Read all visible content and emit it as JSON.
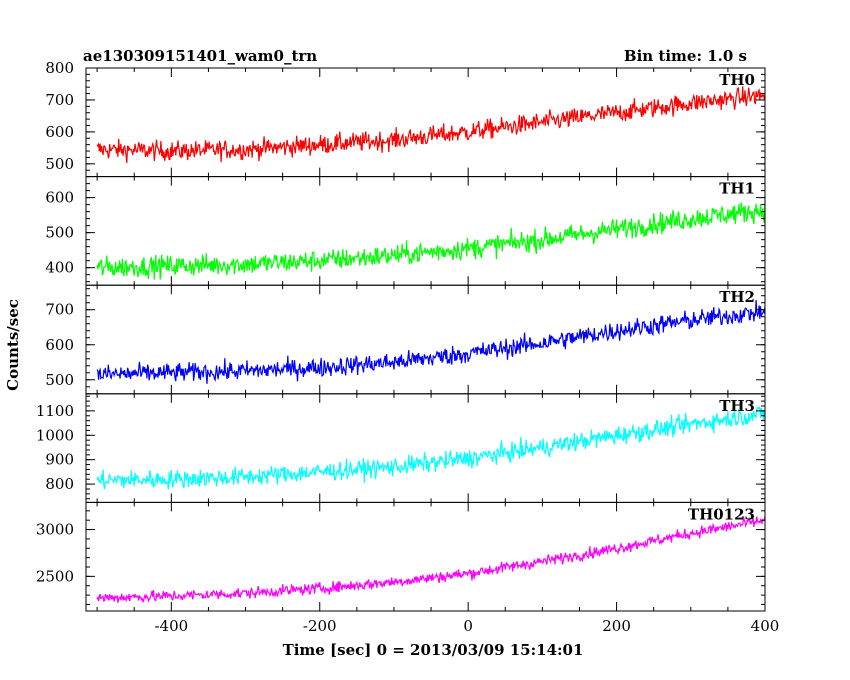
{
  "header": {
    "left_title": "ae130309151401_wam0_trn",
    "right_title": "Bin time: 1.0 s"
  },
  "axes": {
    "xlabel": "Time [sec] 0 = 2013/03/09 15:14:01",
    "ylabel": "Counts/sec"
  },
  "chart_data": [
    {
      "type": "line",
      "name": "TH0",
      "color": "#ff0000",
      "xlim": [
        -515,
        400
      ],
      "ylim": [
        460,
        800
      ],
      "yticks": [
        500,
        600,
        700,
        800
      ],
      "x": [
        -500,
        -400,
        -300,
        -200,
        -100,
        0,
        100,
        200,
        300,
        400
      ],
      "y": [
        545,
        540,
        545,
        560,
        575,
        600,
        630,
        660,
        690,
        715
      ],
      "noise": 28
    },
    {
      "type": "line",
      "name": "TH1",
      "color": "#00ff00",
      "xlim": [
        -515,
        400
      ],
      "ylim": [
        350,
        660
      ],
      "yticks": [
        400,
        500,
        600
      ],
      "x": [
        -500,
        -400,
        -300,
        -200,
        -100,
        0,
        100,
        200,
        300,
        400
      ],
      "y": [
        400,
        405,
        410,
        420,
        435,
        455,
        480,
        510,
        540,
        565
      ],
      "noise": 28
    },
    {
      "type": "line",
      "name": "TH2",
      "color": "#0000ff",
      "xlim": [
        -515,
        400
      ],
      "ylim": [
        460,
        770
      ],
      "yticks": [
        500,
        600,
        700
      ],
      "x": [
        -500,
        -400,
        -300,
        -200,
        -100,
        0,
        100,
        200,
        300,
        400
      ],
      "y": [
        515,
        520,
        525,
        535,
        550,
        575,
        605,
        640,
        670,
        695
      ],
      "noise": 25
    },
    {
      "type": "line",
      "name": "TH3",
      "color": "#00ffff",
      "xlim": [
        -515,
        400
      ],
      "ylim": [
        725,
        1170
      ],
      "yticks": [
        800,
        900,
        1000,
        1100
      ],
      "x": [
        -500,
        -400,
        -300,
        -200,
        -100,
        0,
        100,
        200,
        300,
        400
      ],
      "y": [
        815,
        820,
        830,
        850,
        870,
        905,
        950,
        1000,
        1045,
        1090
      ],
      "noise": 35
    },
    {
      "type": "line",
      "name": "TH0123",
      "color": "#ff00ff",
      "xlim": [
        -515,
        400
      ],
      "ylim": [
        2130,
        3290
      ],
      "yticks": [
        2500,
        3000
      ],
      "x": [
        -500,
        -400,
        -300,
        -200,
        -100,
        0,
        100,
        200,
        300,
        400
      ],
      "y": [
        2270,
        2290,
        2320,
        2370,
        2440,
        2530,
        2660,
        2800,
        2960,
        3100
      ],
      "noise": 55
    }
  ],
  "xticks": [
    -400,
    -200,
    0,
    200,
    400
  ]
}
